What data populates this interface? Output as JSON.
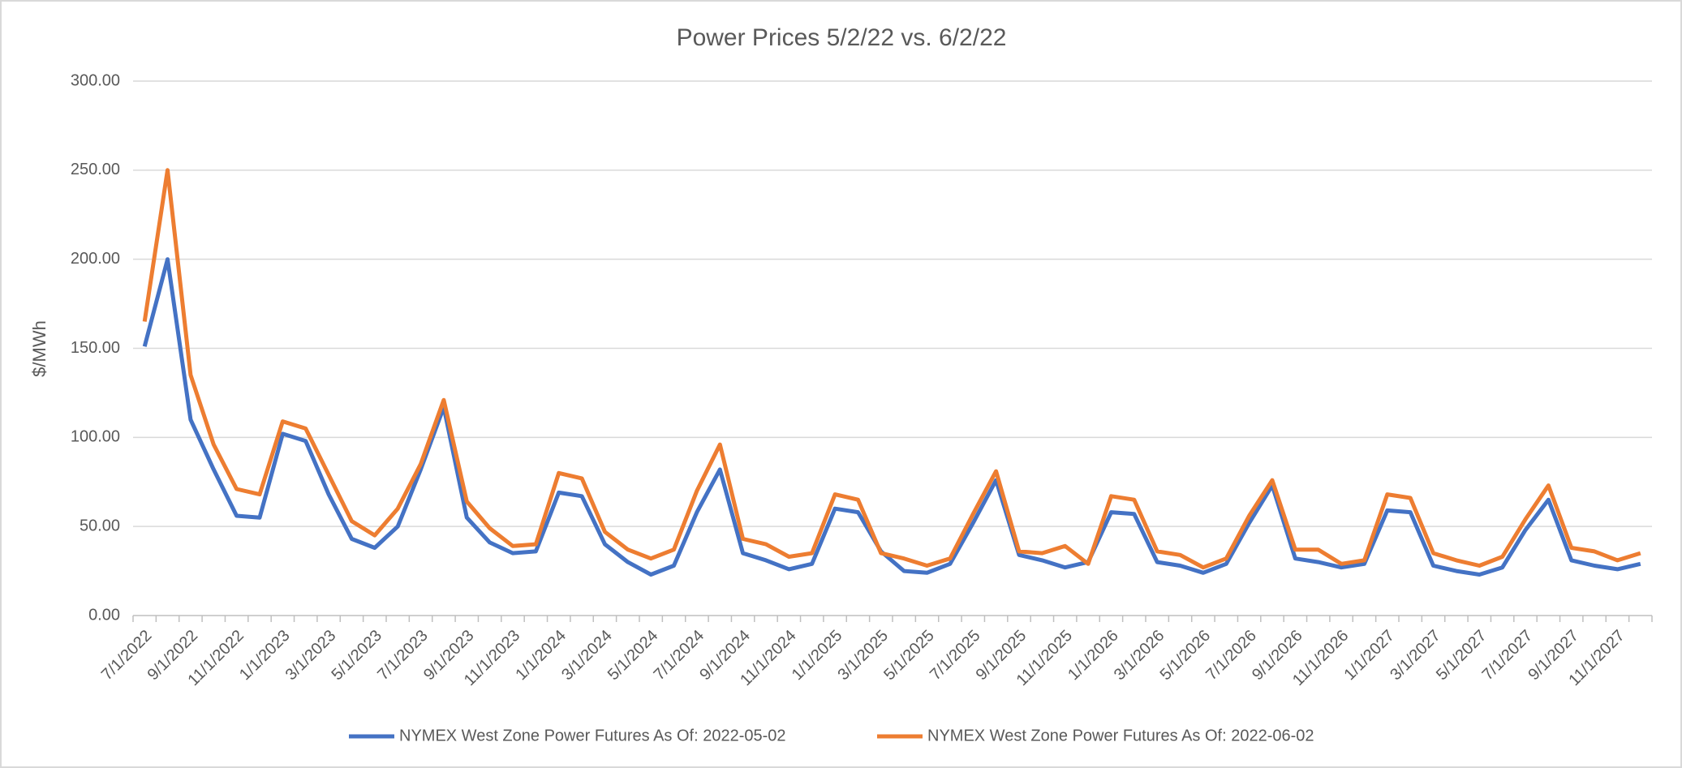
{
  "chart_data": {
    "type": "line",
    "title": "Power Prices 5/2/22 vs. 6/2/22",
    "y_label": "$/MWh",
    "categories": [
      "7/1/2022",
      null,
      "9/1/2022",
      null,
      "11/1/2022",
      null,
      "1/1/2023",
      null,
      "3/1/2023",
      null,
      "5/1/2023",
      null,
      "7/1/2023",
      null,
      "9/1/2023",
      null,
      "11/1/2023",
      null,
      "1/1/2024",
      null,
      "3/1/2024",
      null,
      "5/1/2024",
      null,
      "7/1/2024",
      null,
      "9/1/2024",
      null,
      "11/1/2024",
      null,
      "1/1/2025",
      null,
      "3/1/2025",
      null,
      "5/1/2025",
      null,
      "7/1/2025",
      null,
      "9/1/2025",
      null,
      "11/1/2025",
      null,
      "1/1/2026",
      null,
      "3/1/2026",
      null,
      "5/1/2026",
      null,
      "7/1/2026",
      null,
      "9/1/2026",
      null,
      "11/1/2026",
      null,
      "1/1/2027",
      null,
      "3/1/2027",
      null,
      "5/1/2027",
      null,
      "7/1/2027",
      null,
      "9/1/2027",
      null,
      "11/1/2027",
      null
    ],
    "series": [
      {
        "name": "NYMEX West Zone Power Futures As Of: 2022-05-02",
        "color": "#4472c4",
        "values": [
          151,
          200,
          110,
          82,
          56,
          55,
          102,
          98,
          68,
          43,
          38,
          50,
          82,
          117,
          55,
          41,
          35,
          36,
          69,
          67,
          40,
          30,
          23,
          28,
          58,
          82,
          35,
          31,
          26,
          29,
          60,
          58,
          36,
          25,
          24,
          29,
          52,
          76,
          34,
          31,
          27,
          30,
          58,
          57,
          30,
          28,
          24,
          29,
          52,
          73,
          32,
          30,
          27,
          29,
          59,
          58,
          28,
          25,
          23,
          27,
          48,
          65,
          31,
          28,
          26,
          29
        ]
      },
      {
        "name": "NYMEX West Zone Power Futures As Of: 2022-06-02",
        "color": "#ed7d31",
        "values": [
          165,
          250,
          135,
          96,
          71,
          68,
          109,
          105,
          79,
          53,
          45,
          60,
          85,
          121,
          64,
          49,
          39,
          40,
          80,
          77,
          47,
          37,
          32,
          37,
          70,
          96,
          43,
          40,
          33,
          35,
          68,
          65,
          35,
          32,
          28,
          32,
          57,
          81,
          36,
          35,
          39,
          29,
          67,
          65,
          36,
          34,
          27,
          32,
          56,
          76,
          37,
          37,
          29,
          31,
          68,
          66,
          35,
          31,
          28,
          33,
          54,
          73,
          38,
          36,
          31,
          35
        ]
      }
    ],
    "ylim": [
      0,
      300
    ],
    "yticks": [
      {
        "value": 0,
        "label": "0.00"
      },
      {
        "value": 50,
        "label": "50.00"
      },
      {
        "value": 100,
        "label": "100.00"
      },
      {
        "value": 150,
        "label": "150.00"
      },
      {
        "value": 200,
        "label": "200.00"
      },
      {
        "value": 250,
        "label": "250.00"
      },
      {
        "value": 300,
        "label": "300.00"
      }
    ],
    "grid": true,
    "legend": "bottom"
  }
}
